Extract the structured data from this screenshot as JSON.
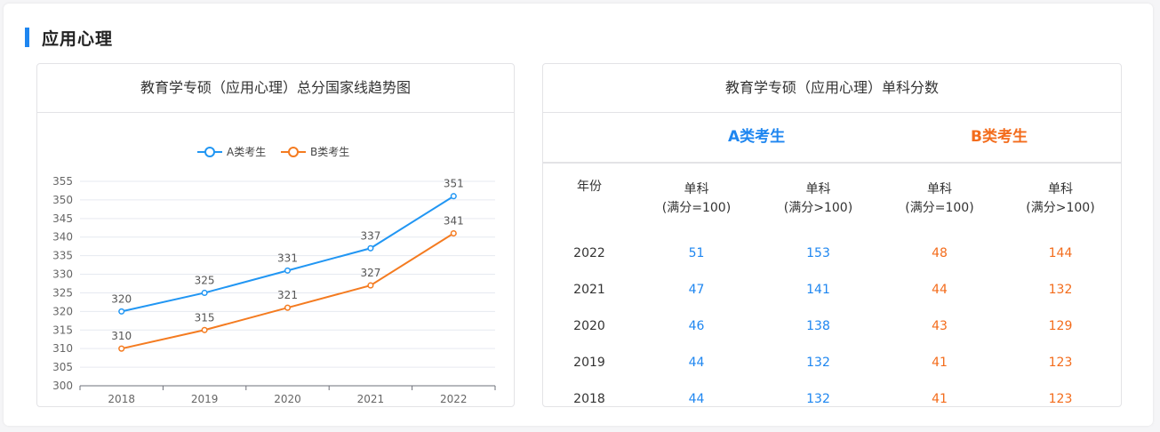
{
  "section": {
    "title": "应用心理"
  },
  "left_card": {
    "title": "教育学专硕（应用心理）总分国家线趋势图"
  },
  "right_card": {
    "title": "教育学专硕（应用心理）单科分数",
    "group_a": "A类考生",
    "group_b": "B类考生",
    "headers": {
      "year": "年份",
      "a_le100_line1": "单科",
      "a_le100_line2": "(满分=100)",
      "a_gt100_line1": "单科",
      "a_gt100_line2": "(满分>100)",
      "b_le100_line1": "单科",
      "b_le100_line2": "(满分=100)",
      "b_gt100_line1": "单科",
      "b_gt100_line2": "(满分>100)"
    },
    "rows": [
      {
        "year": "2022",
        "a100": "51",
        "a150": "153",
        "b100": "48",
        "b150": "144"
      },
      {
        "year": "2021",
        "a100": "47",
        "a150": "141",
        "b100": "44",
        "b150": "132"
      },
      {
        "year": "2020",
        "a100": "46",
        "a150": "138",
        "b100": "43",
        "b150": "129"
      },
      {
        "year": "2019",
        "a100": "44",
        "a150": "132",
        "b100": "41",
        "b150": "123"
      },
      {
        "year": "2018",
        "a100": "44",
        "a150": "132",
        "b100": "41",
        "b150": "123"
      }
    ]
  },
  "colors": {
    "a": "#2196f3",
    "b": "#f47b20",
    "accent": "#1e86f0"
  },
  "chart_data": {
    "type": "line",
    "title": "教育学专硕（应用心理）总分国家线趋势图",
    "x": [
      "2018",
      "2019",
      "2020",
      "2021",
      "2022"
    ],
    "series": [
      {
        "name": "A类考生",
        "values": [
          320,
          325,
          331,
          337,
          351
        ]
      },
      {
        "name": "B类考生",
        "values": [
          310,
          315,
          321,
          327,
          341
        ]
      }
    ],
    "ylim": [
      300,
      355
    ],
    "yticks": [
      300,
      305,
      310,
      315,
      320,
      325,
      330,
      335,
      340,
      345,
      350,
      355
    ],
    "grid": true,
    "legend": "top-center",
    "data_labels": true
  }
}
